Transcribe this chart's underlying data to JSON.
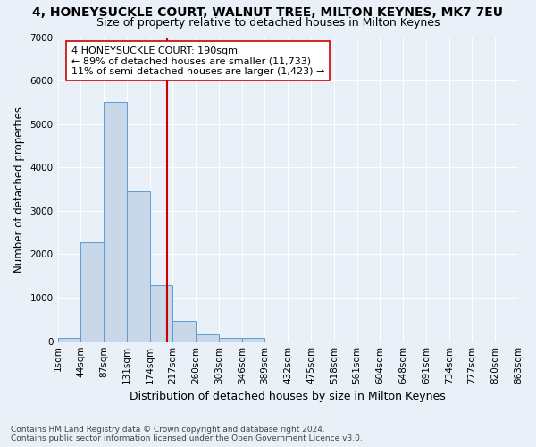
{
  "title": "4, HONEYSUCKLE COURT, WALNUT TREE, MILTON KEYNES, MK7 7EU",
  "subtitle": "Size of property relative to detached houses in Milton Keynes",
  "xlabel": "Distribution of detached houses by size in Milton Keynes",
  "ylabel": "Number of detached properties",
  "bar_values": [
    75,
    2275,
    5500,
    3450,
    1300,
    460,
    160,
    75,
    75,
    0,
    0,
    0,
    0,
    0,
    0,
    0,
    0,
    0,
    0,
    0
  ],
  "bin_labels": [
    "1sqm",
    "44sqm",
    "87sqm",
    "131sqm",
    "174sqm",
    "217sqm",
    "260sqm",
    "303sqm",
    "346sqm",
    "389sqm",
    "432sqm",
    "475sqm",
    "518sqm",
    "561sqm",
    "604sqm",
    "648sqm",
    "691sqm",
    "734sqm",
    "777sqm",
    "820sqm",
    "863sqm"
  ],
  "bar_color": "#c8d8e8",
  "bar_edge_color": "#5b9bd5",
  "vline_x": 4.75,
  "vline_color": "#cc0000",
  "annotation_text": "4 HONEYSUCKLE COURT: 190sqm\n← 89% of detached houses are smaller (11,733)\n11% of semi-detached houses are larger (1,423) →",
  "annotation_box_color": "white",
  "annotation_box_edge": "#cc0000",
  "ylim": [
    0,
    7000
  ],
  "yticks": [
    0,
    1000,
    2000,
    3000,
    4000,
    5000,
    6000,
    7000
  ],
  "bg_color": "#eaf0f8",
  "footer_text": "Contains HM Land Registry data © Crown copyright and database right 2024.\nContains public sector information licensed under the Open Government Licence v3.0.",
  "title_fontsize": 10,
  "subtitle_fontsize": 9,
  "xlabel_fontsize": 9,
  "ylabel_fontsize": 8.5,
  "tick_fontsize": 7.5,
  "annotation_fontsize": 8,
  "footer_fontsize": 6.5
}
